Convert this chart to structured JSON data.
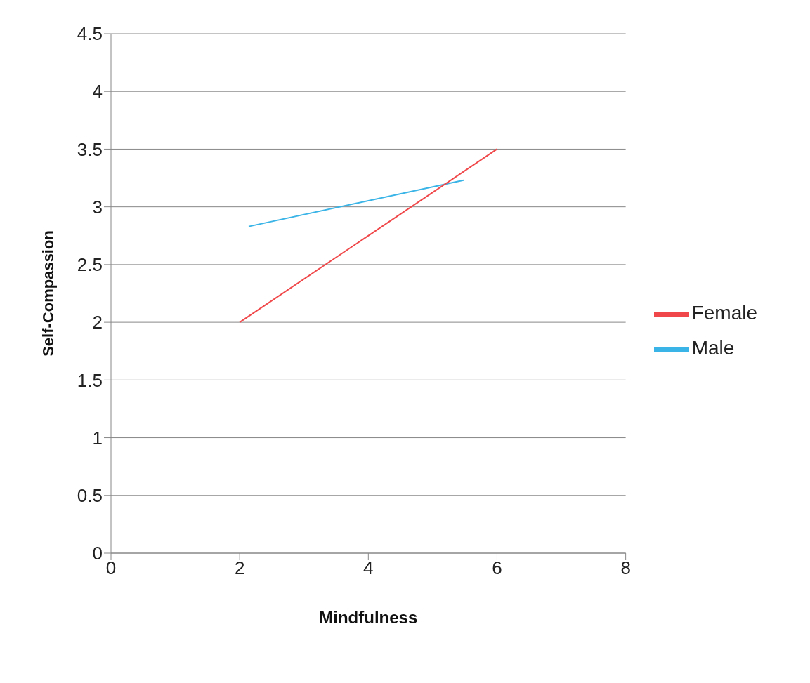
{
  "chart_data": {
    "type": "line",
    "xlabel": "Mindfulness",
    "ylabel": "Self-Compassion",
    "xlim": [
      0,
      8
    ],
    "xticks": [
      0,
      2,
      4,
      6,
      8
    ],
    "ylim": [
      0,
      4.5
    ],
    "yticks": [
      0,
      0.5,
      1,
      1.5,
      2,
      2.5,
      3,
      3.5,
      4,
      4.5
    ],
    "grid": "y",
    "legend": "right",
    "line_style": "solid",
    "series": [
      {
        "name": "Male",
        "color": "#3ab4e6",
        "x": [
          2.14,
          5.48
        ],
        "values": [
          2.83,
          3.23
        ]
      },
      {
        "name": "Female",
        "color": "#f0484a",
        "x": [
          2,
          6
        ],
        "values": [
          2,
          3.5
        ]
      }
    ]
  }
}
